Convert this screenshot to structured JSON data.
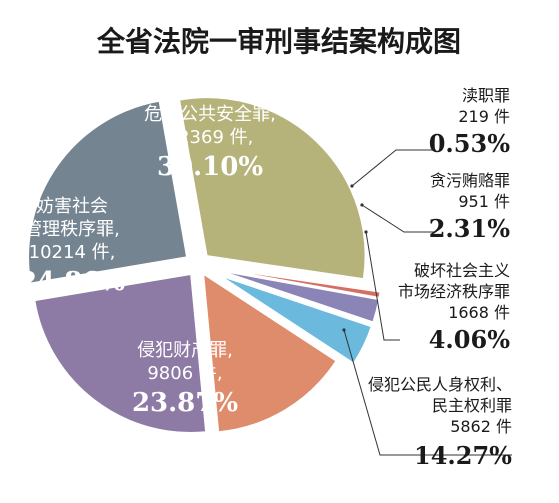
{
  "chart_data": {
    "type": "pie",
    "title": "全省法院一审刑事结案构成图",
    "slices": [
      {
        "label_lines": [
          "危害公共安全罪,",
          "12369 件,"
        ],
        "count": 12369,
        "percent_text": "30.10%",
        "value": 30.1,
        "color": "#b5b37a",
        "label_color": "#ffffff"
      },
      {
        "label_lines": [
          "渎职罪",
          "219 件"
        ],
        "count": 219,
        "percent_text": "0.53%",
        "value": 0.53,
        "color": "#d66f63",
        "label_color": "#1a1a1a"
      },
      {
        "label_lines": [
          "贪污贿赂罪",
          "951 件"
        ],
        "count": 951,
        "percent_text": "2.31%",
        "value": 2.31,
        "color": "#8b84b6",
        "label_color": "#1a1a1a"
      },
      {
        "label_lines": [
          "破坏社会主义",
          "市场经济秩序罪",
          "1668 件"
        ],
        "count": 1668,
        "percent_text": "4.06%",
        "value": 4.06,
        "color": "#6bb9dc",
        "label_color": "#1a1a1a"
      },
      {
        "label_lines": [
          "侵犯公民人身权利、",
          "民主权利罪",
          "5862 件"
        ],
        "count": 5862,
        "percent_text": "14.27%",
        "value": 14.27,
        "color": "#df8c6c",
        "label_color": "#1a1a1a"
      },
      {
        "label_lines": [
          "侵犯财产罪,",
          "9806 件,"
        ],
        "count": 9806,
        "percent_text": "23.87%",
        "value": 23.87,
        "color": "#8d7aa5",
        "label_color": "#ffffff"
      },
      {
        "label_lines": [
          "妨害社会",
          "管理秩序罪,",
          "10214 件,"
        ],
        "count": 10214,
        "percent_text": "24.86%",
        "value": 24.86,
        "color": "#748491",
        "label_color": "#ffffff"
      }
    ],
    "legend": "none",
    "grid": false
  }
}
